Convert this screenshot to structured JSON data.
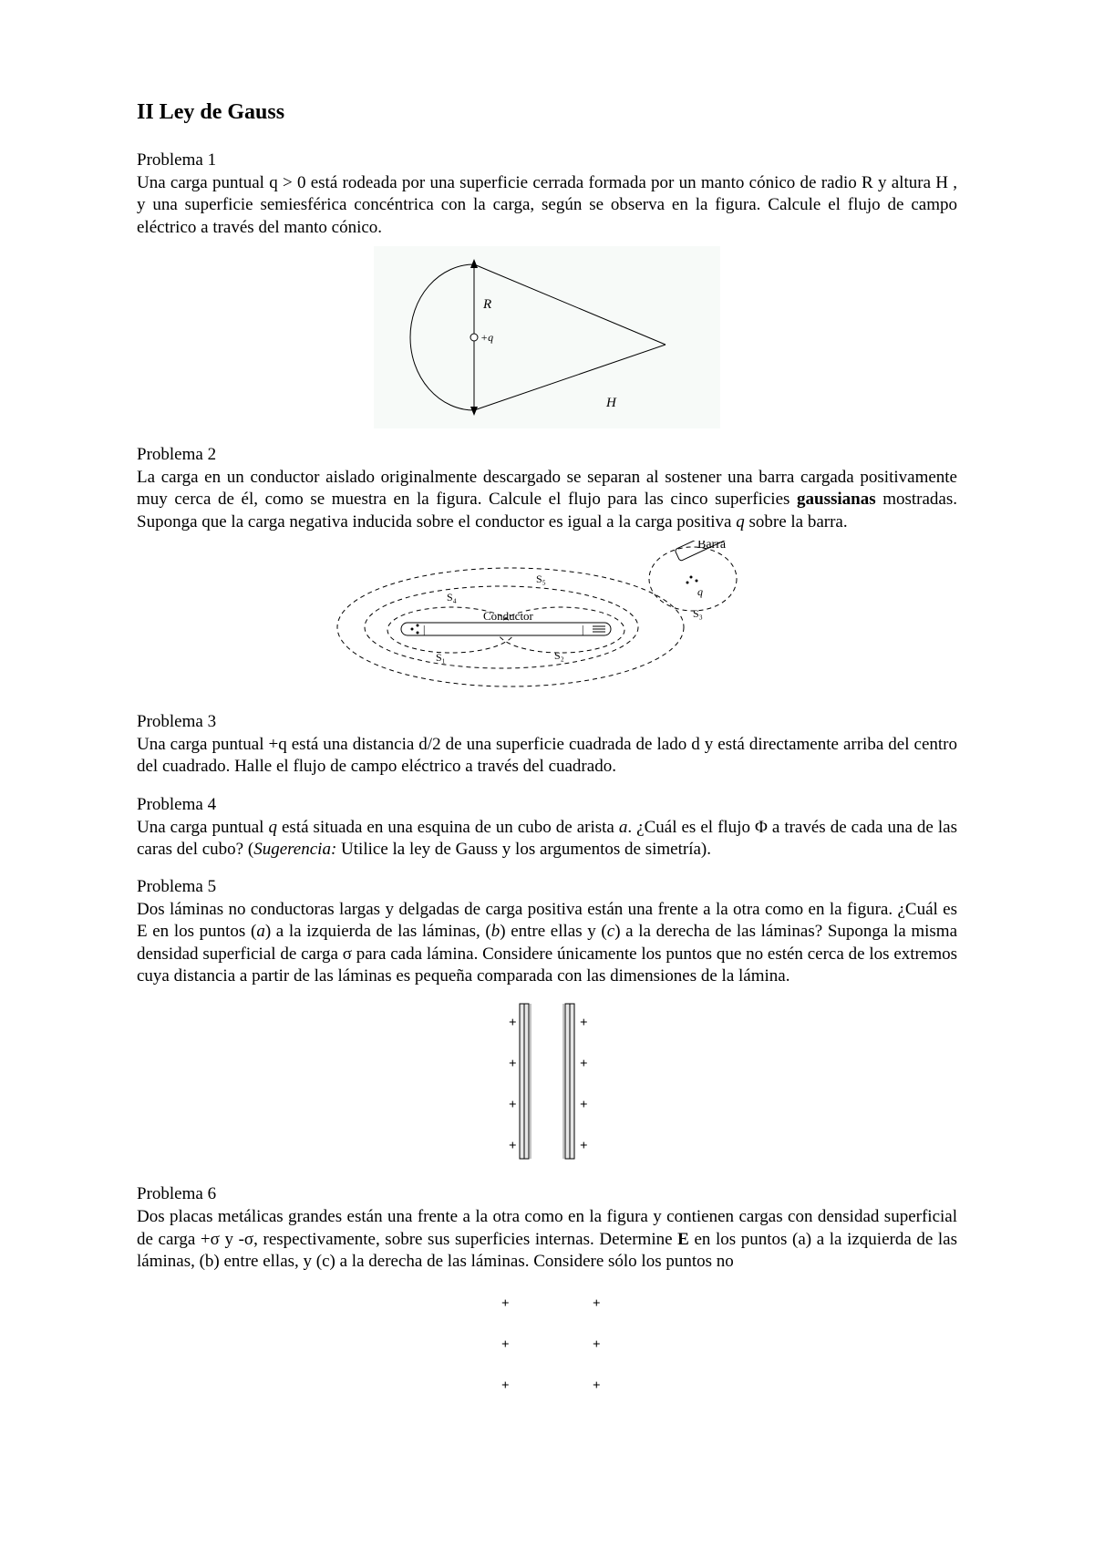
{
  "title": "II Ley de Gauss",
  "problems": [
    {
      "heading": "Problema 1",
      "text_html": "Una carga puntual q &gt; 0 está rodeada por una superficie cerrada formada por un manto cónico de radio R y altura H , y una superficie semiesférica concéntrica con la carga, según se observa en la figura. Calcule el flujo de campo eléctrico a través del manto cónico."
    },
    {
      "heading": "Problema 2",
      "text_html": "La carga en un conductor aislado originalmente descargado se separan al sostener una barra cargada positivamente muy cerca de él, como se muestra en la figura. Calcule el flujo para las cinco superficies <span class=\"bold\">gaussianas</span> mostradas. Suponga que la carga negativa inducida sobre el conductor es igual a la carga positiva <span class=\"ital\">q</span> sobre la barra."
    },
    {
      "heading": "Problema 3",
      "text_html": "Una carga puntual +q está una distancia d/2 de una superficie cuadrada de lado d y está directamente arriba del centro del cuadrado. Halle el flujo de campo eléctrico a través del cuadrado."
    },
    {
      "heading": "Problema 4",
      "text_html": " Una carga puntual <span class=\"ital\">q</span> está situada en una esquina de un cubo de arista <span class=\"ital\">a</span>. ¿Cuál es el flujo Φ a través de cada una de las caras del cubo? (<span class=\"ital\">Sugerencia:</span> Utilice la ley de Gauss y los argumentos de simetría)."
    },
    {
      "heading": "Problema 5",
      "text_html": "Dos láminas no conductoras largas y delgadas de carga positiva están una frente a la otra como en la figura. ¿Cuál es E en los puntos (<span class=\"ital\">a</span>) a la izquierda de las láminas, (<span class=\"ital\">b</span>) entre ellas y (<span class=\"ital\">c</span>) a la derecha de las láminas? Suponga la misma densidad superficial de carga σ para cada lámina. Considere únicamente los puntos que no estén cerca de los extremos cuya distancia a partir de las láminas es pequeña comparada con las dimensiones de la lámina."
    },
    {
      "heading": "Problema 6",
      "text_html": "Dos placas metálicas grandes están una frente a la otra como en la figura y contienen cargas con densidad superficial de carga +σ  y  -σ, respectivamente, sobre sus superficies internas. Determine <span class=\"bold\">E</span> en los puntos (a) a la izquierda de las láminas, (b) entre ellas, y (c) a la derecha de las láminas. Considere sólo los puntos no"
    }
  ],
  "fig1": {
    "labels": {
      "R": "R",
      "q": "+q",
      "H": "H"
    },
    "bg": "#f7faf8",
    "stroke": "#000000"
  },
  "fig2": {
    "labels": {
      "barra": "Barra",
      "conductor": "Conductor",
      "s1": "S₁",
      "s2": "S₂",
      "s3": "S₃",
      "s4": "S₄",
      "s5": "S₅",
      "q": "q"
    },
    "stroke": "#000000"
  },
  "fig5": {
    "plus": "+",
    "plate_fill": "#e6e6e6",
    "plate_stroke": "#000000"
  },
  "fig6": {
    "plus": "+",
    "gap": 100
  }
}
